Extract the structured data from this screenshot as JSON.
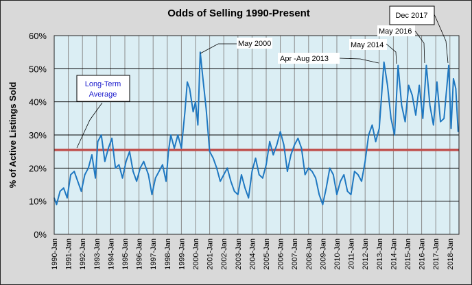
{
  "chart_data": {
    "type": "line",
    "title": "Odds of Selling 1990-Present",
    "ylabel": "% of Active Listings Sold",
    "xlabel": "",
    "ylim": [
      0,
      60
    ],
    "yticks": [
      "0%",
      "10%",
      "20%",
      "30%",
      "40%",
      "50%",
      "60%"
    ],
    "xticks": [
      "1990-Jan",
      "1991-Jan",
      "1992-Jan",
      "1993-Jan",
      "1994-Jan",
      "1995-Jan",
      "1996-Jan",
      "1997-Jan",
      "1998-Jan",
      "1999-Jan",
      "2000-Jan",
      "2001-Jan",
      "2002-Jan",
      "2003-Jan",
      "2004-Jan",
      "2005-Jan",
      "2006-Jan",
      "2007-Jan",
      "2008-Jan",
      "2009-Jan",
      "2010-Jan",
      "2011-Jan",
      "2012-Jan",
      "2013-Jan",
      "2014-Jan",
      "2015-Jan",
      "2016-Jan",
      "2017-Jan",
      "2018-Jan"
    ],
    "grid": true,
    "colors": {
      "series": "#1f78c1",
      "average": "#c0504d",
      "plot_bg": "#dbeef4",
      "chart_bg": "#d9d9d9",
      "annotation_text_average": "#1a1acc"
    },
    "long_term_average": 25.5,
    "series": [
      {
        "x": [
          "1990-01",
          "1990-03",
          "1990-06",
          "1990-09",
          "1990-12",
          "1991-03",
          "1991-06",
          "1991-09",
          "1991-12",
          "1992-03",
          "1992-06",
          "1992-09",
          "1992-12",
          "1993-02",
          "1993-05",
          "1993-08",
          "1993-11",
          "1994-02",
          "1994-05",
          "1994-08",
          "1994-11",
          "1995-02",
          "1995-05",
          "1995-08",
          "1995-11",
          "1996-02",
          "1996-05",
          "1996-09",
          "1996-12",
          "1997-03",
          "1997-06",
          "1997-09",
          "1997-12",
          "1998-02",
          "1998-04",
          "1998-07",
          "1998-10",
          "1999-01",
          "1999-04",
          "1999-06",
          "1999-08",
          "1999-11",
          "2000-01",
          "2000-03",
          "2000-05",
          "2000-07",
          "2000-10",
          "2001-01",
          "2001-04",
          "2001-07",
          "2001-10",
          "2002-01",
          "2002-04",
          "2002-07",
          "2002-10",
          "2003-01",
          "2003-04",
          "2003-07",
          "2003-10",
          "2004-01",
          "2004-04",
          "2004-07",
          "2004-10",
          "2005-01",
          "2005-04",
          "2005-07",
          "2005-10",
          "2006-01",
          "2006-04",
          "2006-07",
          "2006-10",
          "2007-01",
          "2007-04",
          "2007-07",
          "2007-10",
          "2008-01",
          "2008-04",
          "2008-07",
          "2008-10",
          "2009-01",
          "2009-04",
          "2009-07",
          "2009-10",
          "2010-01",
          "2010-04",
          "2010-07",
          "2010-10",
          "2011-01",
          "2011-04",
          "2011-07",
          "2011-10",
          "2012-01",
          "2012-04",
          "2012-07",
          "2012-10",
          "2013-01",
          "2013-05",
          "2013-08",
          "2013-11",
          "2014-02",
          "2014-05",
          "2014-08",
          "2014-11",
          "2015-02",
          "2015-05",
          "2015-08",
          "2015-11",
          "2016-02",
          "2016-05",
          "2016-08",
          "2016-11",
          "2017-02",
          "2017-05",
          "2017-08",
          "2017-12",
          "2018-02",
          "2018-04",
          "2018-06",
          "2018-08"
        ],
        "values": [
          11,
          9,
          13,
          14,
          11,
          18,
          19,
          16,
          13,
          18,
          20,
          24,
          17,
          28,
          30,
          22,
          26,
          29,
          20,
          21,
          17,
          22,
          25,
          19,
          16,
          20,
          22,
          18,
          12,
          17,
          19,
          21,
          16,
          25,
          30,
          26,
          30,
          26,
          37,
          46,
          44,
          37,
          40,
          33,
          55,
          48,
          38,
          25,
          23,
          20,
          16,
          18,
          20,
          16,
          13,
          12,
          18,
          14,
          11,
          19,
          23,
          18,
          17,
          21,
          28,
          24,
          27,
          31,
          27,
          19,
          24,
          27,
          29,
          26,
          18,
          20,
          19,
          17,
          12,
          9,
          14,
          20,
          18,
          12,
          16,
          18,
          13,
          12,
          19,
          18,
          16,
          22,
          30,
          33,
          28,
          32,
          52,
          45,
          35,
          30,
          51,
          39,
          34,
          45,
          42,
          36,
          45,
          35,
          51,
          39,
          33,
          46,
          34,
          35,
          51,
          32,
          47,
          44,
          31
        ]
      }
    ],
    "annotations": [
      {
        "label": "Long-Term Average",
        "line1": "Long-Term",
        "line2": "Average",
        "target": "average line"
      },
      {
        "label": "May 2000",
        "x": "2000-05",
        "y": 55
      },
      {
        "label": "Apr -Aug 2013",
        "x": "2013-05",
        "y": 52
      },
      {
        "label": "May 2014",
        "x": "2014-05",
        "y": 51
      },
      {
        "label": "May 2016",
        "x": "2016-05",
        "y": 51
      },
      {
        "label": "Dec 2017",
        "x": "2017-12",
        "y": 51
      }
    ]
  }
}
